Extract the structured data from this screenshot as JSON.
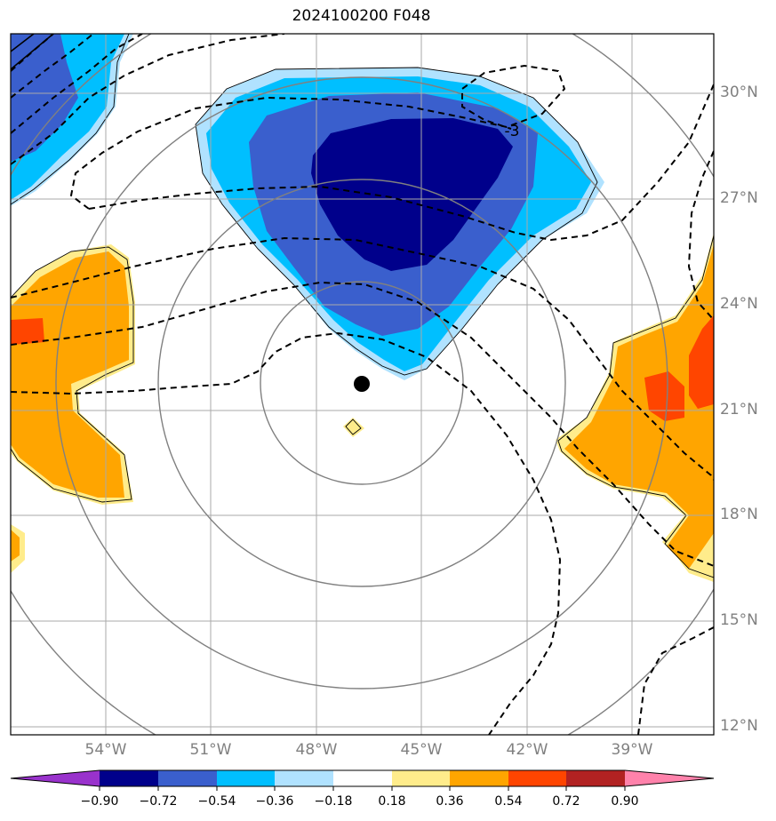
{
  "title": "2024100200 F048",
  "lat_labels": [
    "30°N",
    "27°N",
    "24°N",
    "21°N",
    "18°N",
    "15°N",
    "12°N"
  ],
  "lon_labels": [
    "54°W",
    "51°W",
    "48°W",
    "45°W",
    "42°W",
    "39°W"
  ],
  "contour_label": "-3",
  "colorbar": {
    "ticks": [
      "−0.90",
      "−0.72",
      "−0.54",
      "−0.36",
      "−0.18",
      "0.18",
      "0.36",
      "0.54",
      "0.72",
      "0.90"
    ],
    "colors": [
      "#9932cc",
      "#00008b",
      "#3a5fcd",
      "#00bfff",
      "#b0e2ff",
      "#ffffff",
      "#ffec8b",
      "#ffa500",
      "#ff4500",
      "#b22222",
      "#ff82ab"
    ]
  },
  "palette": {
    "dark_blue": "#00008b",
    "mid_blue": "#3a5fcd",
    "light_blue": "#00bfff",
    "pale_blue": "#b0e2ff",
    "pale_yellow": "#ffec8b",
    "orange": "#ffa500",
    "red_orange": "#ff4500",
    "grid": "#aaaaaa",
    "ring": "#808080"
  },
  "storm_center": {
    "lat": 21.8,
    "lon": -46.7
  }
}
